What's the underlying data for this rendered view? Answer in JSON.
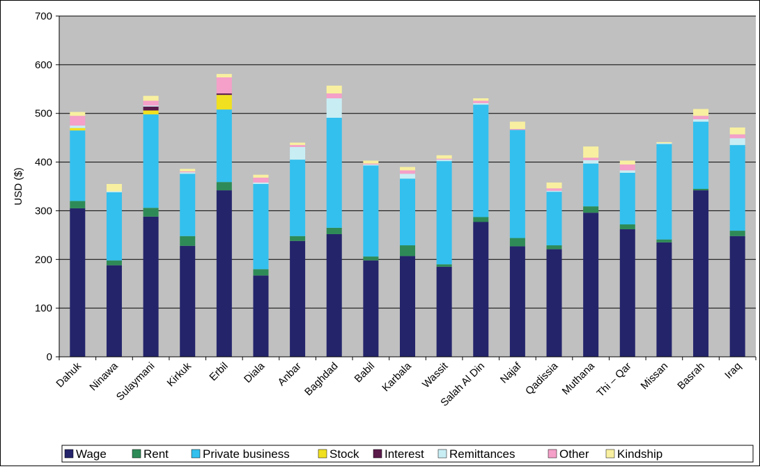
{
  "chart_data": {
    "type": "bar",
    "stacked": true,
    "title": "",
    "xlabel": "",
    "ylabel": "USD ($)",
    "ylim": [
      0,
      700
    ],
    "yticks": [
      0,
      100,
      200,
      300,
      400,
      500,
      600,
      700
    ],
    "grid": true,
    "legend_position": "bottom",
    "plot_background": "#c0c0c0",
    "categories": [
      "Dahuk",
      "Ninawa",
      "Sulaymani",
      "Kirkuk",
      "Erbil",
      "Diala",
      "Anbar",
      "Baghdad",
      "Babil",
      "Karbala",
      "Wassit",
      "Salah Al Din",
      "Najaf",
      "Qadissia",
      "Muthana",
      "Thi – Qar",
      "Missan",
      "Basrah",
      "Iraq"
    ],
    "series": [
      {
        "name": "Wage",
        "color": "#24246b",
        "values": [
          305,
          188,
          288,
          228,
          342,
          167,
          238,
          252,
          198,
          207,
          185,
          277,
          227,
          221,
          296,
          262,
          235,
          342,
          248
        ]
      },
      {
        "name": "Rent",
        "color": "#2e8b57",
        "values": [
          15,
          10,
          18,
          20,
          17,
          13,
          10,
          13,
          8,
          22,
          5,
          10,
          17,
          8,
          13,
          10,
          6,
          3,
          11
        ]
      },
      {
        "name": "Private business",
        "color": "#33c0ee",
        "values": [
          145,
          140,
          192,
          128,
          149,
          175,
          157,
          226,
          187,
          137,
          212,
          231,
          222,
          110,
          88,
          106,
          196,
          138,
          176
        ]
      },
      {
        "name": "Stock",
        "color": "#f0e020",
        "values": [
          5,
          0,
          8,
          0,
          30,
          0,
          0,
          0,
          0,
          0,
          0,
          0,
          0,
          0,
          0,
          0,
          0,
          0,
          0
        ]
      },
      {
        "name": "Interest",
        "color": "#5a1a4a",
        "values": [
          0,
          0,
          8,
          0,
          3,
          0,
          0,
          0,
          0,
          0,
          0,
          0,
          0,
          0,
          0,
          0,
          0,
          0,
          0
        ]
      },
      {
        "name": "Remittances",
        "color": "#c8eef4",
        "values": [
          5,
          2,
          2,
          3,
          0,
          3,
          26,
          40,
          2,
          10,
          3,
          3,
          0,
          2,
          7,
          5,
          2,
          5,
          14
        ]
      },
      {
        "name": "Other",
        "color": "#f4a0c8",
        "values": [
          20,
          0,
          10,
          2,
          33,
          10,
          4,
          10,
          2,
          7,
          2,
          5,
          2,
          5,
          5,
          12,
          0,
          7,
          8
        ]
      },
      {
        "name": "Kindship",
        "color": "#f8f0a0",
        "values": [
          8,
          15,
          10,
          5,
          7,
          6,
          5,
          16,
          6,
          7,
          7,
          5,
          15,
          12,
          23,
          8,
          2,
          14,
          14
        ]
      }
    ]
  }
}
